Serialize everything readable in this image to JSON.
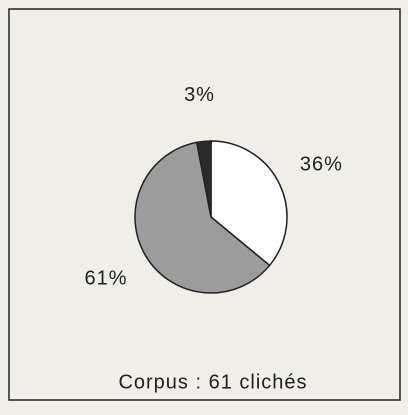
{
  "chart_data": {
    "type": "pie",
    "categories": [
      null,
      null,
      null
    ],
    "values": [
      36,
      61,
      3
    ],
    "value_labels": [
      "36%",
      "61%",
      "3%"
    ],
    "colors": [
      "#ffffff",
      "#9c9c9c",
      "#2a2a2a"
    ],
    "caption": "Corpus : 61 clichés"
  }
}
